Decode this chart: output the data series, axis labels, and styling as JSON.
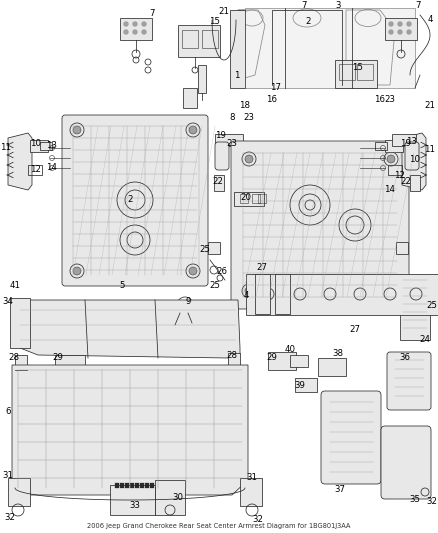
{
  "title": "2006 Jeep Grand Cherokee Rear Seat Center Armrest Diagram for 1BG801J3AA",
  "background_color": "#ffffff",
  "figsize": [
    4.38,
    5.33
  ],
  "dpi": 100,
  "image_b64": ""
}
